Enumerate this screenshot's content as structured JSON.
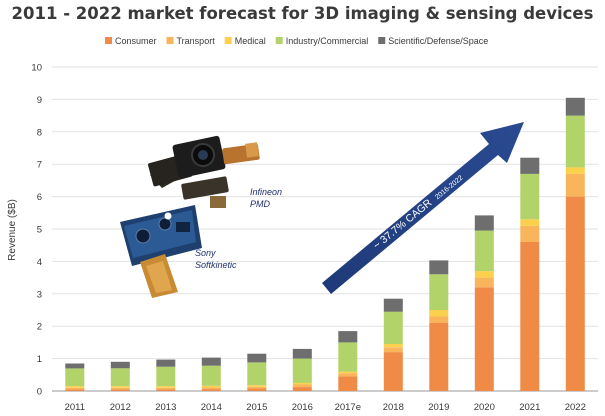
{
  "chart_data": {
    "type": "bar",
    "stacked": true,
    "title": "2011 - 2022 market forecast for 3D imaging & sensing devices",
    "ylabel": "Revenue ($B)",
    "xlabel": "",
    "ylim": [
      0,
      10
    ],
    "yticks": [
      0,
      1,
      2,
      3,
      4,
      5,
      6,
      7,
      8,
      9,
      10
    ],
    "grid": true,
    "legend_position": "top",
    "categories": [
      "2011",
      "2012",
      "2013",
      "2014",
      "2015",
      "2016",
      "2017e",
      "2018",
      "2019",
      "2020",
      "2021",
      "2022"
    ],
    "series": [
      {
        "name": "Consumer",
        "color": "#f08a47",
        "values": [
          0.05,
          0.05,
          0.05,
          0.06,
          0.08,
          0.12,
          0.45,
          1.2,
          2.1,
          3.2,
          4.6,
          6.0
        ]
      },
      {
        "name": "Transport",
        "color": "#f9b55c",
        "values": [
          0.05,
          0.05,
          0.05,
          0.05,
          0.05,
          0.08,
          0.1,
          0.15,
          0.2,
          0.3,
          0.5,
          0.7
        ]
      },
      {
        "name": "Medical",
        "color": "#fbd04d",
        "values": [
          0.05,
          0.05,
          0.05,
          0.05,
          0.05,
          0.05,
          0.05,
          0.1,
          0.2,
          0.2,
          0.2,
          0.2
        ]
      },
      {
        "name": "Industry/Commercial",
        "color": "#b2d36a",
        "values": [
          0.55,
          0.55,
          0.6,
          0.62,
          0.7,
          0.75,
          0.9,
          1.0,
          1.1,
          1.25,
          1.4,
          1.6
        ]
      },
      {
        "name": "Scientific/Defense/Space",
        "color": "#6e6e6e",
        "values": [
          0.15,
          0.2,
          0.22,
          0.25,
          0.27,
          0.3,
          0.35,
          0.4,
          0.43,
          0.47,
          0.5,
          0.55
        ]
      }
    ],
    "annotations": {
      "cagr_main": "~ 37.7% CAGR",
      "cagr_sub": "2016-2022",
      "products": [
        "Infineon",
        "PMD",
        "Sony",
        "Softkinetic"
      ]
    }
  }
}
